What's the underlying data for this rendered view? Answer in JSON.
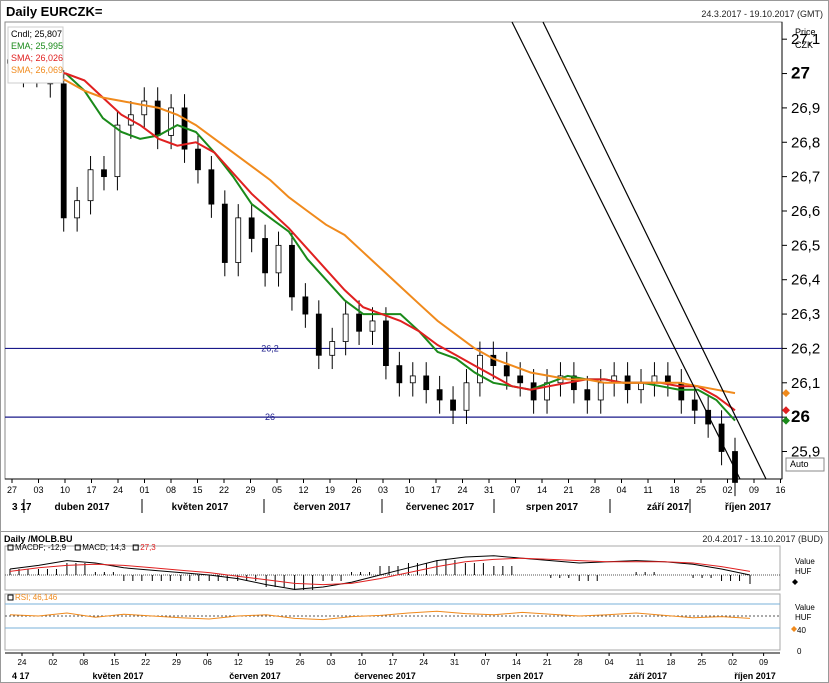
{
  "chart_data": [
    {
      "type": "candlestick",
      "title": "Daily EURCZK=",
      "date_range": "24.3.2017 - 19.10.2017 (GMT)",
      "price_label": "Price",
      "currency": "CZK",
      "ylim": [
        25.82,
        27.15
      ],
      "y_ticks": [
        "27,1",
        "27",
        "26,9",
        "26,8",
        "26,7",
        "26,6",
        "26,5",
        "26,4",
        "26,3",
        "26,2",
        "26,1",
        "26",
        "25,9"
      ],
      "y_bold_ticks": [
        "27",
        "26"
      ],
      "auto_label": "Auto",
      "legend": [
        {
          "label": "Cndl; 25,807",
          "color": "#000000"
        },
        {
          "label": "EMA; 25,995",
          "color": "#1a8a1a"
        },
        {
          "label": "SMA; 26,026",
          "color": "#e02020"
        },
        {
          "label": "SMA; 26,069",
          "color": "#f08a1c"
        }
      ],
      "horizontal_lines": [
        {
          "label": "26,2",
          "value": 26.2,
          "color": "#1a1a8a"
        },
        {
          "label": "26",
          "value": 26.0,
          "color": "#1a1a8a"
        }
      ],
      "x_day_ticks": [
        "27",
        "03",
        "10",
        "17",
        "24",
        "01",
        "08",
        "15",
        "22",
        "29",
        "05",
        "12",
        "19",
        "26",
        "03",
        "10",
        "17",
        "24",
        "31",
        "07",
        "14",
        "21",
        "28",
        "04",
        "11",
        "18",
        "25",
        "02",
        "09",
        "16"
      ],
      "x_month_labels": [
        "3 17",
        "duben 2017",
        "květen 2017",
        "červen 2017",
        "červenec 2017",
        "srpen 2017",
        "září 2017",
        "říjen 2017"
      ],
      "series": [
        {
          "name": "EMA",
          "color": "#1a8a1a",
          "values": [
            27.0,
            27.0,
            27.0,
            27.0,
            26.95,
            26.87,
            26.83,
            26.81,
            26.82,
            26.85,
            26.83,
            26.77,
            26.7,
            26.62,
            26.58,
            26.54,
            26.46,
            26.4,
            26.34,
            26.3,
            26.3,
            26.3,
            26.25,
            26.19,
            26.17,
            26.13,
            26.1,
            26.09,
            26.08,
            26.1,
            26.12,
            26.11,
            26.11,
            26.1,
            26.1,
            26.09,
            26.08,
            26.08,
            26.05,
            25.99
          ]
        },
        {
          "name": "SMA 1",
          "color": "#e02020",
          "values": [
            27.0,
            27.0,
            27.01,
            27.0,
            26.98,
            26.93,
            26.88,
            26.85,
            26.81,
            26.79,
            26.8,
            26.77,
            26.71,
            26.65,
            26.6,
            26.55,
            26.49,
            26.43,
            26.37,
            26.32,
            26.3,
            26.28,
            26.25,
            26.21,
            26.18,
            26.15,
            26.12,
            26.09,
            26.08,
            26.09,
            26.1,
            26.11,
            26.11,
            26.1,
            26.1,
            26.1,
            26.09,
            26.09,
            26.06,
            26.02
          ]
        },
        {
          "name": "SMA 2",
          "color": "#f08a1c",
          "values": [
            27.0,
            27.0,
            27.0,
            26.98,
            26.95,
            26.93,
            26.92,
            26.91,
            26.9,
            26.88,
            26.85,
            26.81,
            26.77,
            26.73,
            26.69,
            26.64,
            26.6,
            26.56,
            26.53,
            26.48,
            26.43,
            26.38,
            26.33,
            26.28,
            26.24,
            26.2,
            26.17,
            26.15,
            26.13,
            26.12,
            26.11,
            26.11,
            26.1,
            26.1,
            26.1,
            26.1,
            26.1,
            26.09,
            26.08,
            26.07
          ]
        }
      ],
      "candles": [
        27.03,
        27.0,
        27.02,
        26.97,
        26.58,
        26.63,
        26.72,
        26.7,
        26.85,
        26.88,
        26.92,
        26.82,
        26.9,
        26.78,
        26.72,
        26.62,
        26.45,
        26.58,
        26.52,
        26.42,
        26.5,
        26.35,
        26.3,
        26.18,
        26.22,
        26.3,
        26.25,
        26.28,
        26.15,
        26.1,
        26.12,
        26.08,
        26.05,
        26.02,
        26.1,
        26.18,
        26.15,
        26.12,
        26.1,
        26.05,
        26.1,
        26.12,
        26.08,
        26.05,
        26.1,
        26.12,
        26.08,
        26.1,
        26.12,
        26.1,
        26.05,
        26.02,
        25.98,
        25.9,
        25.81
      ]
    },
    {
      "type": "line",
      "title": "Daily /MOLB.BU",
      "date_range": "20.4.2017 - 13.10.2017 (BUD)",
      "macd_legend": [
        {
          "label": "MACDF; -12,9",
          "color": "#000000"
        },
        {
          "label": "MACD; 14,3",
          "color": "#000000"
        },
        {
          "label": "27,3",
          "color": "#e02020"
        }
      ],
      "macd_axis": [
        "Value",
        "HUF"
      ],
      "rsi_legend": [
        {
          "label": "RSI; 46,146",
          "color": "#f08a1c"
        }
      ],
      "rsi_axis": [
        "Value",
        "HUF"
      ],
      "rsi_ticks": [
        "40",
        "0"
      ],
      "macd_line": [
        5,
        8,
        12,
        10,
        6,
        4,
        2,
        0,
        -3,
        -8,
        -12,
        -10,
        -6,
        0,
        6,
        12,
        15,
        16,
        14,
        12,
        10,
        11,
        12,
        11,
        9,
        5,
        0
      ],
      "macd_signal": [
        3,
        6,
        8,
        9,
        8,
        6,
        4,
        2,
        -1,
        -4,
        -7,
        -8,
        -7,
        -3,
        2,
        7,
        11,
        13,
        14,
        13,
        12,
        11,
        11,
        11,
        10,
        7,
        3
      ],
      "rsi_values": [
        52,
        50,
        55,
        48,
        53,
        50,
        47,
        45,
        50,
        52,
        46,
        44,
        49,
        51,
        55,
        58,
        54,
        52,
        56,
        53,
        50,
        52,
        55,
        51,
        47,
        49,
        46
      ],
      "x_day_ticks": [
        "24",
        "02",
        "08",
        "15",
        "22",
        "29",
        "06",
        "12",
        "19",
        "26",
        "03",
        "10",
        "17",
        "24",
        "31",
        "07",
        "14",
        "21",
        "28",
        "04",
        "11",
        "18",
        "25",
        "02",
        "09"
      ],
      "x_month_labels": [
        "4 17",
        "květen 2017",
        "červen 2017",
        "červenec 2017",
        "srpen 2017",
        "září 2017",
        "říjen 2017"
      ]
    }
  ]
}
